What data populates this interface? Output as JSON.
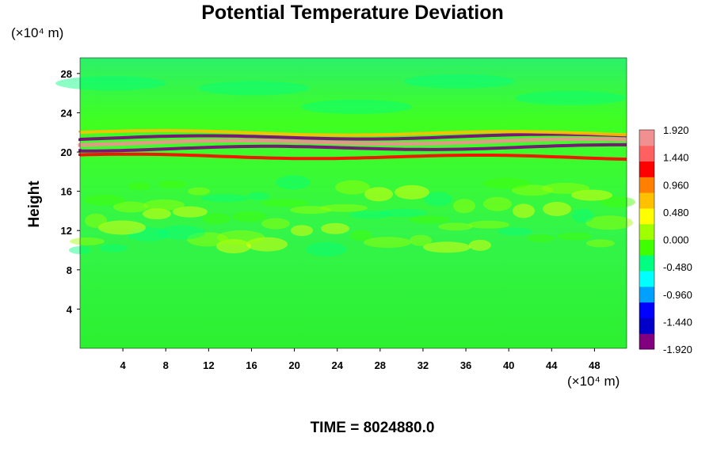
{
  "chart_data": {
    "type": "heatmap",
    "title": "Potential Temperature Deviation",
    "ylabel": "Height",
    "y_unit": "(×10⁴ m)",
    "x_unit": "(×10⁴ m)",
    "x_ticks": [
      "4",
      "8",
      "12",
      "16",
      "20",
      "24",
      "28",
      "32",
      "36",
      "40",
      "44",
      "48"
    ],
    "y_ticks": [
      "4",
      "8",
      "12",
      "16",
      "20",
      "24",
      "28"
    ],
    "x_tick_values": [
      4,
      8,
      12,
      16,
      20,
      24,
      28,
      32,
      36,
      40,
      44,
      48
    ],
    "y_tick_values": [
      4,
      8,
      12,
      16,
      20,
      24,
      28
    ],
    "xlim": [
      0,
      51
    ],
    "ylim": [
      0,
      29.6
    ],
    "colorbar": {
      "range": [
        -1.92,
        1.92
      ],
      "labels": [
        "1.920",
        "1.440",
        "0.960",
        "0.480",
        "0.000",
        "-0.480",
        "-0.960",
        "-1.440",
        "-1.920"
      ],
      "label_values": [
        1.92,
        1.44,
        0.96,
        0.48,
        0.0,
        -0.48,
        -0.96,
        -1.44,
        -1.92
      ],
      "colors": [
        "#800080",
        "#0000c8",
        "#0000ff",
        "#00a0ff",
        "#00ffff",
        "#00ff80",
        "#40ff00",
        "#a0ff00",
        "#ffff00",
        "#ffc000",
        "#ff8000",
        "#ff0000",
        "#ff6060",
        "#f09090"
      ]
    },
    "field_description_bands": [
      {
        "height": 20.3,
        "value": -1.8
      },
      {
        "height": 20.9,
        "value": 1.9
      },
      {
        "height": 21.4,
        "value": -1.7
      },
      {
        "height": 22.0,
        "value": 0.6
      },
      {
        "height": 19.6,
        "value": 1.2
      }
    ]
  },
  "footer": {
    "time_label": "TIME = 8024880.0"
  }
}
